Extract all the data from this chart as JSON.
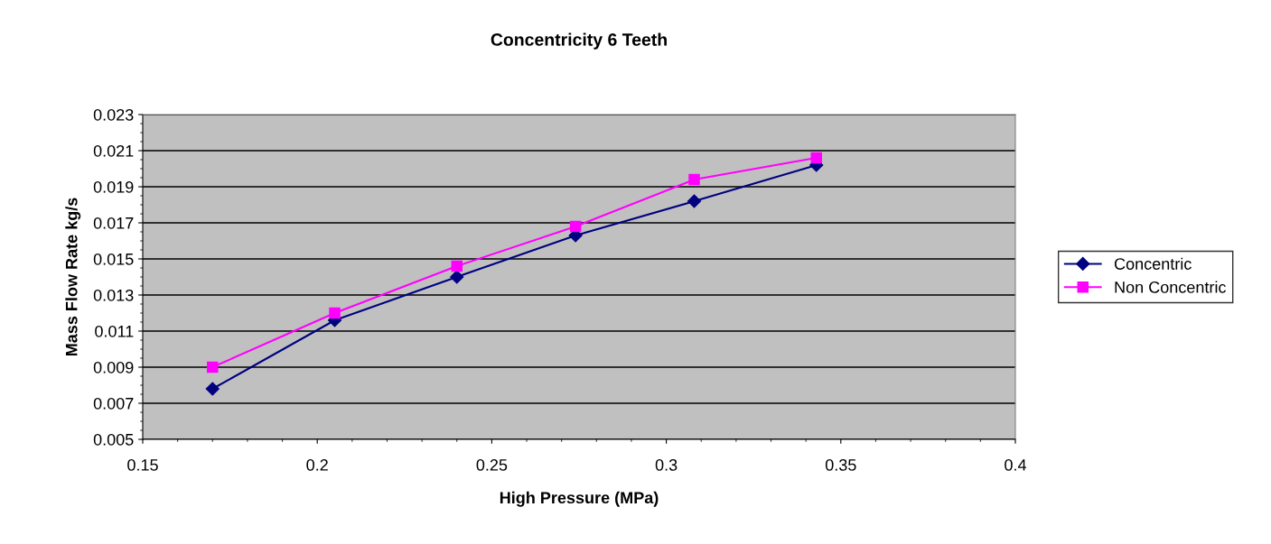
{
  "chart_data": {
    "type": "line",
    "title": "Concentricity 6 Teeth",
    "xlabel": "High Pressure (MPa)",
    "ylabel": "Mass Flow Rate kg/s",
    "x": [
      0.17,
      0.205,
      0.24,
      0.274,
      0.308,
      0.343
    ],
    "series": [
      {
        "name": "Concentric",
        "color": "#000080",
        "marker": "diamond",
        "values": [
          0.0078,
          0.0116,
          0.014,
          0.0163,
          0.0182,
          0.0202
        ]
      },
      {
        "name": "Non Concentric",
        "color": "#ff00ff",
        "marker": "square",
        "values": [
          0.009,
          0.012,
          0.0146,
          0.0168,
          0.0194,
          0.0206
        ]
      }
    ],
    "xlim": [
      0.15,
      0.4
    ],
    "xticks": [
      0.15,
      0.2,
      0.25,
      0.3,
      0.35,
      0.4
    ],
    "ylim": [
      0.005,
      0.023
    ],
    "yticks": [
      0.005,
      0.007,
      0.009,
      0.011,
      0.013,
      0.015,
      0.017,
      0.019,
      0.021,
      0.023
    ],
    "grid": "y",
    "legend": "right",
    "line_style": "solid"
  }
}
